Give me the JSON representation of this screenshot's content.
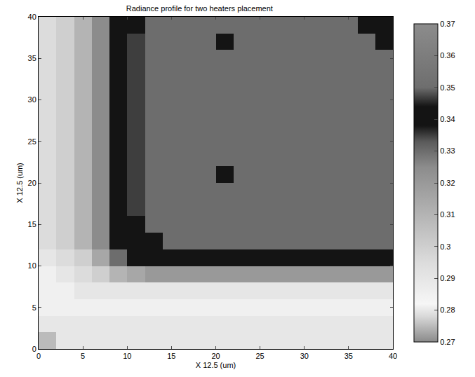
{
  "chart_data": {
    "type": "heatmap",
    "title": "Radiance profile for two heaters placement",
    "x_label": "X 12.5 (um)",
    "y_label": "X 12.5 (um)",
    "x": [
      1,
      3,
      5,
      7,
      9,
      11,
      13,
      15,
      17,
      19,
      21,
      23,
      25,
      27,
      29,
      31,
      33,
      35,
      37,
      39
    ],
    "y": [
      1,
      3,
      5,
      7,
      9,
      11,
      13,
      15,
      17,
      19,
      21,
      23,
      25,
      27,
      29,
      31,
      33,
      35,
      37,
      39
    ],
    "z": [
      [
        0.275,
        0.28,
        0.28,
        0.28,
        0.28,
        0.28,
        0.28,
        0.28,
        0.28,
        0.28,
        0.28,
        0.28,
        0.28,
        0.28,
        0.28,
        0.28,
        0.28,
        0.28,
        0.28,
        0.28
      ],
      [
        0.28,
        0.28,
        0.28,
        0.28,
        0.28,
        0.28,
        0.28,
        0.28,
        0.28,
        0.28,
        0.28,
        0.28,
        0.28,
        0.28,
        0.28,
        0.28,
        0.28,
        0.28,
        0.28,
        0.28
      ],
      [
        0.285,
        0.285,
        0.285,
        0.285,
        0.285,
        0.285,
        0.285,
        0.285,
        0.285,
        0.285,
        0.285,
        0.285,
        0.285,
        0.285,
        0.285,
        0.285,
        0.285,
        0.285,
        0.285,
        0.285
      ],
      [
        0.285,
        0.285,
        0.29,
        0.29,
        0.29,
        0.29,
        0.29,
        0.29,
        0.29,
        0.29,
        0.29,
        0.29,
        0.29,
        0.29,
        0.29,
        0.29,
        0.29,
        0.29,
        0.29,
        0.29
      ],
      [
        0.285,
        0.29,
        0.295,
        0.3,
        0.31,
        0.315,
        0.32,
        0.32,
        0.32,
        0.32,
        0.32,
        0.32,
        0.32,
        0.32,
        0.32,
        0.32,
        0.32,
        0.32,
        0.32,
        0.32
      ],
      [
        0.29,
        0.295,
        0.3,
        0.315,
        0.33,
        0.34,
        0.34,
        0.34,
        0.34,
        0.34,
        0.34,
        0.34,
        0.34,
        0.34,
        0.34,
        0.34,
        0.34,
        0.34,
        0.34,
        0.34
      ],
      [
        0.295,
        0.3,
        0.31,
        0.325,
        0.34,
        0.34,
        0.34,
        0.33,
        0.33,
        0.33,
        0.33,
        0.33,
        0.33,
        0.33,
        0.33,
        0.33,
        0.33,
        0.33,
        0.33,
        0.33
      ],
      [
        0.295,
        0.3,
        0.31,
        0.325,
        0.34,
        0.34,
        0.33,
        0.33,
        0.33,
        0.33,
        0.33,
        0.33,
        0.33,
        0.33,
        0.33,
        0.33,
        0.33,
        0.33,
        0.33,
        0.33
      ],
      [
        0.295,
        0.3,
        0.31,
        0.325,
        0.34,
        0.335,
        0.33,
        0.33,
        0.33,
        0.33,
        0.33,
        0.33,
        0.33,
        0.33,
        0.33,
        0.33,
        0.33,
        0.33,
        0.33,
        0.33
      ],
      [
        0.295,
        0.3,
        0.31,
        0.325,
        0.34,
        0.335,
        0.33,
        0.33,
        0.33,
        0.33,
        0.33,
        0.33,
        0.33,
        0.33,
        0.33,
        0.33,
        0.33,
        0.33,
        0.33,
        0.33
      ],
      [
        0.295,
        0.3,
        0.31,
        0.325,
        0.34,
        0.335,
        0.33,
        0.33,
        0.33,
        0.33,
        0.34,
        0.33,
        0.33,
        0.33,
        0.33,
        0.33,
        0.33,
        0.33,
        0.33,
        0.33
      ],
      [
        0.295,
        0.3,
        0.31,
        0.325,
        0.34,
        0.335,
        0.33,
        0.33,
        0.33,
        0.33,
        0.33,
        0.33,
        0.33,
        0.33,
        0.33,
        0.33,
        0.33,
        0.33,
        0.33,
        0.33
      ],
      [
        0.295,
        0.3,
        0.31,
        0.325,
        0.34,
        0.335,
        0.33,
        0.33,
        0.33,
        0.33,
        0.33,
        0.33,
        0.33,
        0.33,
        0.33,
        0.33,
        0.33,
        0.33,
        0.33,
        0.33
      ],
      [
        0.295,
        0.3,
        0.31,
        0.325,
        0.34,
        0.335,
        0.33,
        0.33,
        0.33,
        0.33,
        0.33,
        0.33,
        0.33,
        0.33,
        0.33,
        0.33,
        0.33,
        0.33,
        0.33,
        0.33
      ],
      [
        0.295,
        0.3,
        0.31,
        0.325,
        0.34,
        0.335,
        0.33,
        0.33,
        0.33,
        0.33,
        0.33,
        0.33,
        0.33,
        0.33,
        0.33,
        0.33,
        0.33,
        0.33,
        0.33,
        0.33
      ],
      [
        0.295,
        0.3,
        0.31,
        0.325,
        0.34,
        0.335,
        0.33,
        0.33,
        0.33,
        0.33,
        0.33,
        0.33,
        0.33,
        0.33,
        0.33,
        0.33,
        0.33,
        0.33,
        0.33,
        0.33
      ],
      [
        0.295,
        0.3,
        0.31,
        0.325,
        0.34,
        0.335,
        0.33,
        0.33,
        0.33,
        0.33,
        0.33,
        0.33,
        0.33,
        0.33,
        0.33,
        0.33,
        0.33,
        0.33,
        0.33,
        0.33
      ],
      [
        0.295,
        0.3,
        0.31,
        0.325,
        0.34,
        0.335,
        0.33,
        0.33,
        0.33,
        0.33,
        0.33,
        0.33,
        0.33,
        0.33,
        0.33,
        0.33,
        0.33,
        0.33,
        0.33,
        0.33
      ],
      [
        0.295,
        0.3,
        0.31,
        0.325,
        0.34,
        0.335,
        0.33,
        0.33,
        0.33,
        0.33,
        0.34,
        0.33,
        0.33,
        0.33,
        0.33,
        0.33,
        0.33,
        0.33,
        0.33,
        0.34
      ],
      [
        0.295,
        0.3,
        0.31,
        0.325,
        0.34,
        0.34,
        0.33,
        0.33,
        0.33,
        0.33,
        0.33,
        0.33,
        0.33,
        0.33,
        0.33,
        0.33,
        0.33,
        0.33,
        0.34,
        0.34
      ]
    ],
    "xlim": [
      0,
      40
    ],
    "xticks": [
      0,
      5,
      10,
      15,
      20,
      25,
      30,
      35,
      40
    ],
    "ylim": [
      0,
      40
    ],
    "yticks": [
      0,
      5,
      10,
      15,
      20,
      25,
      30,
      35,
      40
    ],
    "zlim": [
      0.27,
      0.37
    ],
    "zticks": [
      0.27,
      0.28,
      0.29,
      0.3,
      0.31,
      0.32,
      0.33,
      0.34,
      0.35,
      0.36,
      0.37
    ]
  }
}
